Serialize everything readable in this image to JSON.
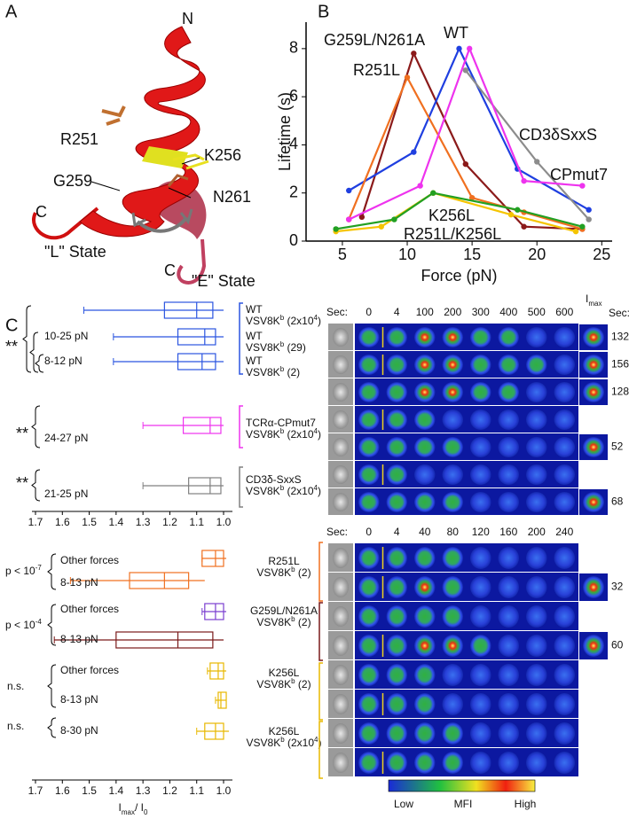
{
  "panel_a": {
    "label": "A",
    "texts": [
      "N",
      "R251",
      "K256",
      "G259",
      "N261",
      "C",
      "\"L\" State",
      "C",
      "\"E\" State"
    ]
  },
  "chart_data": {
    "type": "line",
    "panel_label": "B",
    "xlabel": "Force (pN)",
    "ylabel": "Lifetime (s)",
    "xlim": [
      2.2,
      25.8
    ],
    "ylim": [
      0,
      9.1
    ],
    "xticks": [
      5,
      10,
      15,
      20,
      25
    ],
    "yticks": [
      0,
      2,
      4,
      6,
      8
    ],
    "series": [
      {
        "name": "G259L/N261A",
        "color": "#8b1a1a",
        "x": [
          6.5,
          10.5,
          14.5,
          19,
          23.5
        ],
        "values": [
          1.0,
          7.8,
          3.2,
          0.6,
          0.5
        ]
      },
      {
        "name": "WT",
        "color": "#1f3fe0",
        "x": [
          5.5,
          10.5,
          14,
          18.5,
          24
        ],
        "values": [
          2.1,
          3.7,
          8.0,
          3.0,
          1.3
        ]
      },
      {
        "name": "R251L",
        "color": "#f07020",
        "x": [
          5.5,
          10,
          15,
          19,
          23.5
        ],
        "values": [
          0.9,
          6.8,
          1.8,
          1.2,
          0.5
        ]
      },
      {
        "name": "CD3δSxxS",
        "color": "#8c8c8c",
        "x": [
          14.5,
          20,
          24
        ],
        "values": [
          7.1,
          3.3,
          0.9
        ]
      },
      {
        "name": "CPmut7",
        "color": "#ee33ee",
        "x": [
          5.5,
          11,
          14.8,
          19,
          23.5
        ],
        "values": [
          0.9,
          2.3,
          8.0,
          2.5,
          2.3
        ]
      },
      {
        "name": "K256L",
        "color": "#f5c400",
        "x": [
          4.5,
          8,
          12,
          18,
          23
        ],
        "values": [
          0.4,
          0.6,
          2.0,
          1.1,
          0.4
        ]
      },
      {
        "name": "R251L/K256L",
        "color": "#22a022",
        "x": [
          4.5,
          9,
          12,
          18.5,
          23.5
        ],
        "values": [
          0.5,
          0.9,
          2.0,
          1.3,
          0.6
        ]
      }
    ]
  },
  "panel_c": {
    "label": "C",
    "xlabel": [
      "I",
      "max",
      "/ I",
      "0"
    ],
    "xlim": [
      1.7,
      0.967
    ],
    "xticks": [
      1.7,
      1.6,
      1.5,
      1.4,
      1.3,
      1.2,
      1.1,
      {
        "value": 1,
        "label": "1.0"
      }
    ],
    "top": {
      "boxes": [
        {
          "color": "#2b55e0",
          "min": 1.52,
          "q1": 1.04,
          "median": 1.1,
          "q3": 1.22,
          "max": 1.0
        },
        {
          "color": "#2b55e0",
          "min": 1.41,
          "q1": 1.03,
          "median": 1.07,
          "q3": 1.17,
          "max": 1.0
        },
        {
          "color": "#2b55e0",
          "min": 1.41,
          "q1": 1.03,
          "median": 1.08,
          "q3": 1.17,
          "max": 1.0
        },
        {
          "color": "#ee33ee",
          "min": 1.3,
          "q1": 1.01,
          "median": 1.05,
          "q3": 1.15,
          "max": 1.0
        },
        {
          "color": "#808080",
          "min": 1.3,
          "q1": 1.01,
          "median": 1.05,
          "q3": 1.13,
          "max": 1.0
        }
      ],
      "ranges": [
        "10-25 pN",
        "8-12 pN",
        "24-27 pN",
        "21-25 pN"
      ],
      "stars": [
        "**",
        "**",
        "**"
      ],
      "conditions": [
        {
          "name": "WT",
          "detail": [
            "VSV8K",
            "b",
            " (2x10",
            "4",
            ")"
          ]
        },
        {
          "name": "WT",
          "detail": [
            "VSV8K",
            "b",
            " (29)"
          ]
        },
        {
          "name": "WT",
          "detail": [
            "VSV8K",
            "b",
            " (2)"
          ]
        },
        {
          "name": "TCRα-CPmut7",
          "detail": [
            "VSV8K",
            "b",
            " (2x10",
            "4",
            ")"
          ]
        },
        {
          "name": "CD3δ-SxxS",
          "detail": [
            "VSV8K",
            "b",
            " (2x10",
            "4",
            ")"
          ]
        }
      ],
      "time_label": "Sec:",
      "times": [
        0,
        4,
        100,
        200,
        300,
        400,
        500,
        600
      ],
      "imax_label": [
        "I",
        "max"
      ],
      "imax_time_label": "Sec:",
      "imax_times": [
        132,
        156,
        128,
        52,
        68
      ]
    },
    "bottom": {
      "boxes": [
        {
          "color": "#f07020",
          "min": 1.08,
          "q1": 1.0,
          "median": 1.03,
          "q3": 1.08,
          "max": 0.99
        },
        {
          "color": "#f07020",
          "min": 1.57,
          "q1": 1.13,
          "median": 1.22,
          "q3": 1.35,
          "max": 1.07
        },
        {
          "color": "#7b3fd0",
          "min": 1.08,
          "q1": 1.0,
          "median": 1.03,
          "q3": 1.07,
          "max": 0.99
        },
        {
          "color": "#7a1a1a",
          "min": 1.63,
          "q1": 1.04,
          "median": 1.17,
          "q3": 1.4,
          "max": 1.0
        },
        {
          "color": "#e8b800",
          "min": 1.06,
          "q1": 1.0,
          "median": 1.02,
          "q3": 1.05,
          "max": 0.99
        },
        {
          "color": "#e8b800",
          "min": 1.03,
          "q1": 0.99,
          "median": 1.01,
          "q3": 1.02,
          "max": 0.99
        },
        {
          "color": "#e8b800",
          "min": 1.1,
          "q1": 1.0,
          "median": 1.03,
          "q3": 1.07,
          "max": 0.98
        }
      ],
      "ranges": [
        "Other forces",
        "8-13 pN",
        "Other forces",
        "8-13 pN",
        "Other forces",
        "8-13 pN",
        "8-30 pN"
      ],
      "pvalues": [
        [
          "p < 10",
          "-7"
        ],
        [
          "p < 10",
          "-4"
        ],
        [
          "n.s."
        ],
        [
          "n.s."
        ]
      ],
      "conditions": [
        {
          "name": "R251L",
          "detail": [
            "VSV8K",
            "b",
            " (2)"
          ]
        },
        {
          "name": "G259L/N261A",
          "detail": [
            "VSV8K",
            "b",
            " (2)"
          ]
        },
        {
          "name": "K256L",
          "detail": [
            "VSV8K",
            "b",
            " (2)"
          ]
        },
        {
          "name": "K256L",
          "detail": [
            "VSV8K",
            "b",
            " (2x10",
            "4",
            ")"
          ]
        }
      ],
      "time_label": "Sec:",
      "times": [
        0,
        4,
        40,
        80,
        120,
        160,
        200,
        240
      ],
      "imax_times": [
        32,
        60
      ]
    },
    "colorbar": [
      "Low",
      "MFI",
      "High"
    ]
  }
}
